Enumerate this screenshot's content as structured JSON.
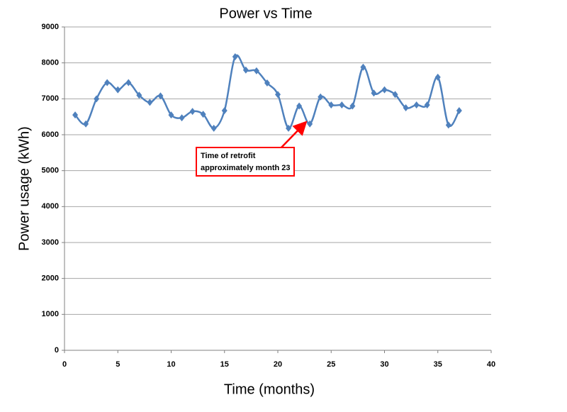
{
  "chart_data": {
    "type": "line",
    "title": "Power vs Time",
    "x_label": "Time  (months)",
    "y_label": "Power usage (kWh)",
    "x": [
      1,
      2,
      3,
      4,
      5,
      6,
      7,
      8,
      9,
      10,
      11,
      12,
      13,
      14,
      15,
      16,
      17,
      18,
      19,
      20,
      21,
      22,
      23,
      24,
      25,
      26,
      27,
      28,
      29,
      30,
      31,
      32,
      33,
      34,
      35,
      36,
      37
    ],
    "series": [
      {
        "color": "#4f81bd",
        "values": [
          6550,
          6300,
          7000,
          7450,
          7250,
          7450,
          7100,
          6900,
          7080,
          6550,
          6470,
          6650,
          6570,
          6180,
          6670,
          8170,
          7800,
          7780,
          7440,
          7120,
          6180,
          6800,
          6300,
          7050,
          6830,
          6830,
          6800,
          7880,
          7160,
          7250,
          7120,
          6750,
          6830,
          6830,
          7600,
          6270,
          6670
        ]
      }
    ],
    "xlim": [
      0,
      40
    ],
    "xticks": [
      0,
      5,
      10,
      15,
      20,
      25,
      30,
      35,
      40
    ],
    "ylim": [
      0,
      9000
    ],
    "yticks": [
      0,
      1000,
      2000,
      3000,
      4000,
      5000,
      6000,
      7000,
      8000,
      9000
    ],
    "grid": true,
    "annotation": {
      "lines": [
        "Time of retrofit",
        "approximately month 23"
      ],
      "color": "#ff0000"
    }
  }
}
